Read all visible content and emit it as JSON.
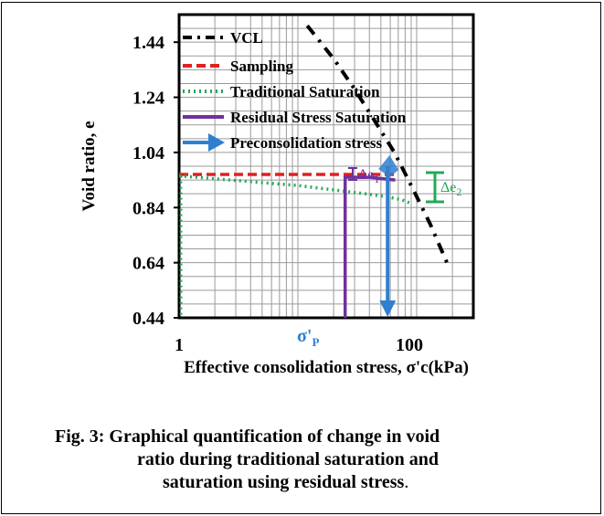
{
  "chart_data": {
    "type": "line",
    "xscale": "log",
    "xlim": [
      1,
      300
    ],
    "ylim": [
      0.44,
      1.54
    ],
    "grid": true,
    "legend_placement": "top-left",
    "xlabel": "Effective consolidation stress, σ'c(kPa)",
    "ylabel": "Void ratio, e",
    "x_tick_labels": [
      "1",
      "100"
    ],
    "y_tick_labels": [
      "1.44",
      "1.24",
      "1.04",
      "0.84",
      "0.64",
      "0.44"
    ],
    "y_ticks": [
      1.44,
      1.24,
      1.04,
      0.84,
      0.64,
      0.44
    ],
    "x_ticks": [
      1,
      100
    ],
    "series": [
      {
        "name": "VCL",
        "color": "#000000",
        "style": "dash-dot",
        "x": [
          12,
          20,
          30,
          45,
          65,
          90,
          130,
          180
        ],
        "y": [
          1.5,
          1.38,
          1.27,
          1.15,
          1.04,
          0.92,
          0.78,
          0.64
        ]
      },
      {
        "name": "Sampling",
        "color": "#e02020",
        "style": "dashed",
        "x": [
          1,
          65
        ],
        "y": [
          0.96,
          0.96
        ]
      },
      {
        "name": "Traditional Saturation",
        "color": "#22aa55",
        "style": "dotted",
        "x": [
          1,
          10,
          30,
          55,
          75,
          90
        ],
        "y": [
          0.955,
          0.92,
          0.895,
          0.88,
          0.868,
          0.855
        ]
      },
      {
        "name": "Residual Stress Saturation",
        "color": "#7030a0",
        "style": "solid",
        "x": [
          25,
          25,
          40,
          66
        ],
        "y": [
          0.44,
          0.95,
          0.95,
          0.94
        ]
      },
      {
        "name": "Preconsolidation stress",
        "color": "#2f7fd0",
        "style": "arrow",
        "x": [
          57,
          57
        ],
        "y": [
          0.99,
          0.45
        ]
      }
    ],
    "annotations": {
      "delta_e1": "Δe",
      "delta_e1_sub": "1",
      "delta_e2": "Δe",
      "delta_e2_sub": "2",
      "sigma_p": "σ'",
      "sigma_p_sub": "P"
    },
    "annotation_colors": {
      "delta_e1": "#7030a0",
      "delta_e2": "#22aa55",
      "sigma_p": "#2f7fd0"
    }
  },
  "caption": {
    "line1": "Fig. 3: Graphical quantification of change in void",
    "line2": "ratio during traditional saturation and",
    "line3_text": "saturation using residual stress",
    "line3_period": "."
  }
}
